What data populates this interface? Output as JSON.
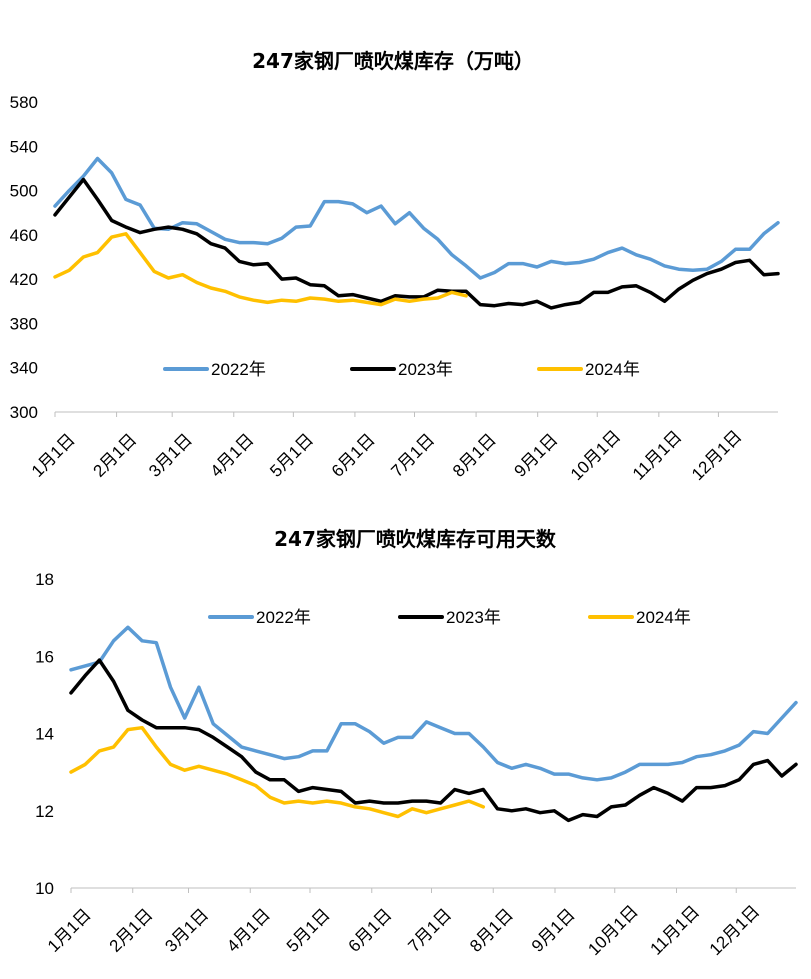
{
  "series_colors": {
    "2022年": "#5b9bd5",
    "2023年": "#000000",
    "2024年": "#ffc000"
  },
  "chart_data": [
    {
      "type": "line",
      "title": "247家钢厂喷吹煤库存（万吨）",
      "x_tick_labels": [
        "1月1日",
        "2月1日",
        "3月1日",
        "4月1日",
        "5月1日",
        "6月1日",
        "7月1日",
        "8月1日",
        "9月1日",
        "10月1日",
        "11月1日",
        "12月1日"
      ],
      "ylim": [
        300,
        580
      ],
      "y_ticks": [
        300,
        340,
        380,
        420,
        460,
        500,
        540,
        580
      ],
      "legend_position": "bottom-inside",
      "grid": false,
      "series": [
        {
          "name": "2022年",
          "values": [
            486,
            500,
            513,
            529,
            516,
            492,
            487,
            466,
            465,
            471,
            470,
            463,
            456,
            453,
            453,
            452,
            457,
            467,
            468,
            490,
            490,
            488,
            480,
            486,
            470,
            480,
            466,
            456,
            442,
            432,
            421,
            426,
            434,
            434,
            431,
            436,
            434,
            435,
            438,
            444,
            448,
            442,
            438,
            432,
            429,
            428,
            429,
            436,
            447,
            447,
            461,
            471
          ]
        },
        {
          "name": "2023年",
          "values": [
            478,
            494,
            510,
            492,
            473,
            467,
            462,
            465,
            467,
            465,
            461,
            452,
            448,
            436,
            433,
            434,
            420,
            421,
            415,
            414,
            405,
            406,
            403,
            400,
            405,
            404,
            404,
            410,
            409,
            409,
            397,
            396,
            398,
            397,
            400,
            394,
            397,
            399,
            408,
            408,
            413,
            414,
            408,
            400,
            411,
            419,
            425,
            429,
            435,
            437,
            424,
            425
          ]
        },
        {
          "name": "2024年",
          "values": [
            422,
            428,
            440,
            444,
            458,
            461,
            444,
            427,
            421,
            424,
            417,
            412,
            409,
            404,
            401,
            399,
            401,
            400,
            403,
            402,
            400,
            401,
            399,
            397,
            402,
            400,
            402,
            403,
            408,
            405
          ]
        }
      ]
    },
    {
      "type": "line",
      "title": "247家钢厂喷吹煤库存可用天数",
      "x_tick_labels": [
        "1月1日",
        "2月1日",
        "3月1日",
        "4月1日",
        "5月1日",
        "6月1日",
        "7月1日",
        "8月1日",
        "9月1日",
        "10月1日",
        "11月1日",
        "12月1日"
      ],
      "ylim": [
        10,
        18
      ],
      "y_ticks": [
        10,
        12,
        14,
        16,
        18
      ],
      "legend_position": "top-inside",
      "grid": false,
      "series": [
        {
          "name": "2022年",
          "values": [
            15.65,
            15.75,
            15.85,
            16.4,
            16.75,
            16.4,
            16.35,
            15.2,
            14.4,
            15.2,
            14.25,
            13.95,
            13.65,
            13.55,
            13.45,
            13.35,
            13.4,
            13.55,
            13.55,
            14.25,
            14.25,
            14.05,
            13.75,
            13.9,
            13.9,
            14.3,
            14.15,
            14.0,
            14.0,
            13.65,
            13.25,
            13.1,
            13.2,
            13.1,
            12.95,
            12.95,
            12.85,
            12.8,
            12.85,
            13.0,
            13.2,
            13.2,
            13.2,
            13.25,
            13.4,
            13.45,
            13.55,
            13.7,
            14.05,
            14.0,
            14.4,
            14.8
          ]
        },
        {
          "name": "2023年",
          "values": [
            15.05,
            15.5,
            15.9,
            15.35,
            14.6,
            14.35,
            14.15,
            14.15,
            14.15,
            14.1,
            13.9,
            13.65,
            13.4,
            13.0,
            12.8,
            12.8,
            12.5,
            12.6,
            12.55,
            12.5,
            12.2,
            12.25,
            12.2,
            12.2,
            12.25,
            12.25,
            12.2,
            12.55,
            12.45,
            12.55,
            12.05,
            12.0,
            12.05,
            11.95,
            12.0,
            11.75,
            11.9,
            11.85,
            12.1,
            12.15,
            12.4,
            12.6,
            12.45,
            12.25,
            12.6,
            12.6,
            12.65,
            12.8,
            13.2,
            13.3,
            12.9,
            13.2
          ]
        },
        {
          "name": "2024年",
          "values": [
            13.0,
            13.2,
            13.55,
            13.65,
            14.1,
            14.15,
            13.65,
            13.2,
            13.05,
            13.15,
            13.05,
            12.95,
            12.8,
            12.65,
            12.35,
            12.2,
            12.25,
            12.2,
            12.25,
            12.2,
            12.1,
            12.05,
            11.95,
            11.85,
            12.05,
            11.95,
            12.05,
            12.15,
            12.25,
            12.1
          ]
        }
      ]
    }
  ]
}
